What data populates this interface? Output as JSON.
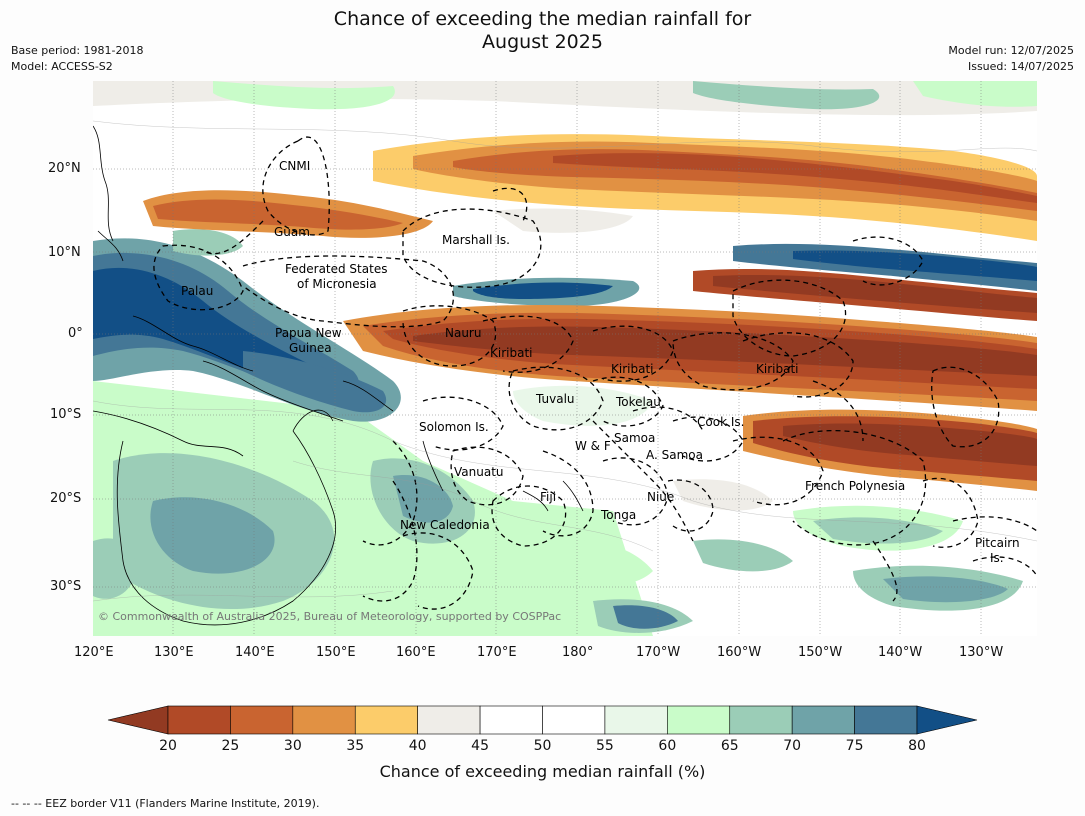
{
  "title": {
    "line1": "Chance of exceeding the median rainfall for",
    "line2": "August 2025"
  },
  "meta": {
    "base_period": "Base period: 1981-2018",
    "model": "Model: ACCESS-S2",
    "model_run": "Model run: 12/07/2025",
    "issued": "Issued: 14/07/2025"
  },
  "axes": {
    "lon_ticks": [
      "120°E",
      "130°E",
      "140°E",
      "150°E",
      "160°E",
      "170°E",
      "180°",
      "170°W",
      "160°W",
      "150°W",
      "140°W",
      "130°W"
    ],
    "lat_ticks": [
      "20°N",
      "10°N",
      "0°",
      "10°S",
      "20°S",
      "30°S"
    ]
  },
  "places": [
    {
      "name": "CNMI",
      "label": "CNMI"
    },
    {
      "name": "guam",
      "label": "Guam"
    },
    {
      "name": "marshall-islands",
      "label": "Marshall Is."
    },
    {
      "name": "fsm-line1",
      "label": "Federated States"
    },
    {
      "name": "fsm-line2",
      "label": "of Micronesia"
    },
    {
      "name": "palau",
      "label": "Palau"
    },
    {
      "name": "nauru",
      "label": "Nauru"
    },
    {
      "name": "png-line1",
      "label": "Papua New"
    },
    {
      "name": "png-line2",
      "label": "Guinea"
    },
    {
      "name": "kiribati-west",
      "label": "Kiribati"
    },
    {
      "name": "kiribati-central",
      "label": "Kiribati"
    },
    {
      "name": "kiribati-east",
      "label": "Kiribati"
    },
    {
      "name": "tuvalu",
      "label": "Tuvalu"
    },
    {
      "name": "tokelau",
      "label": "Tokelau"
    },
    {
      "name": "cook-islands",
      "label": "Cook Is."
    },
    {
      "name": "solomon-islands",
      "label": "Solomon Is."
    },
    {
      "name": "samoa",
      "label": "Samoa"
    },
    {
      "name": "wallis-futuna",
      "label": "W & F"
    },
    {
      "name": "american-samoa",
      "label": "A. Samoa"
    },
    {
      "name": "vanuatu",
      "label": "Vanuatu"
    },
    {
      "name": "fiji",
      "label": "Fiji"
    },
    {
      "name": "niue",
      "label": "Niue"
    },
    {
      "name": "french-polynesia",
      "label": "French Polynesia"
    },
    {
      "name": "tonga",
      "label": "Tonga"
    },
    {
      "name": "new-caledonia",
      "label": "New Caledonia"
    },
    {
      "name": "pitcairn-line1",
      "label": "Pitcairn"
    },
    {
      "name": "pitcairn-line2",
      "label": "Is."
    }
  ],
  "copyright": "© Commonwealth of Australia 2025, Bureau of Meteorology, supported by COSPPac",
  "colorbar": {
    "label": "Chance of exceeding median rainfall (%)",
    "ticks": [
      "20",
      "25",
      "30",
      "35",
      "40",
      "45",
      "50",
      "55",
      "60",
      "65",
      "70",
      "75",
      "80"
    ],
    "colors": {
      "below20": "#923a22",
      "bins": [
        "#b14a27",
        "#c96430",
        "#e19143",
        "#fccc6a",
        "#efede8",
        "#ffffff",
        "#ffffff",
        "#e9f7e9",
        "#c9fcc9",
        "#9bcdb7",
        "#6fa3a8",
        "#447796"
      ],
      "above80": "#124f86"
    }
  },
  "footer": "--  --  -- EEZ border V11 (Flanders Marine Institute, 2019)."
}
